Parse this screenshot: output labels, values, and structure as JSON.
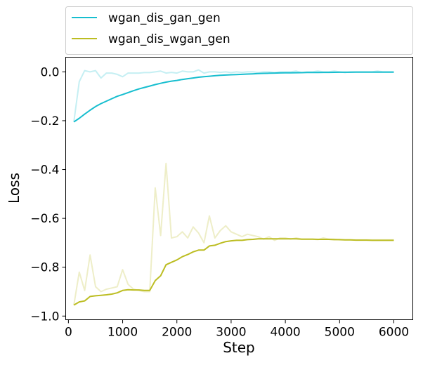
{
  "chart_data": {
    "type": "line",
    "xlabel": "Step",
    "ylabel": "Loss",
    "xlim": [
      -50,
      6350
    ],
    "ylim": [
      -1.015,
      0.06
    ],
    "xticks": [
      0,
      1000,
      2000,
      3000,
      4000,
      5000,
      6000
    ],
    "xtick_labels": [
      "0",
      "1000",
      "2000",
      "3000",
      "4000",
      "5000",
      "6000"
    ],
    "yticks": [
      0.0,
      -0.2,
      -0.4,
      -0.6,
      -0.8,
      -1.0
    ],
    "ytick_labels": [
      "0.0",
      "−0.2",
      "−0.4",
      "−0.6",
      "−0.8",
      "−1.0"
    ],
    "grid": false,
    "legend_placement": "top, above plot",
    "series": [
      {
        "name": "wgan_dis_gan_gen",
        "color": "#17becf",
        "raw_opacity": 0.25,
        "x": [
          100,
          200,
          300,
          400,
          500,
          600,
          700,
          800,
          900,
          1000,
          1100,
          1200,
          1300,
          1400,
          1500,
          1600,
          1700,
          1800,
          1900,
          2000,
          2100,
          2200,
          2300,
          2400,
          2500,
          2600,
          2700,
          2800,
          2900,
          3000,
          3100,
          3200,
          3300,
          3400,
          3500,
          3600,
          3700,
          3800,
          3900,
          4000,
          4100,
          4200,
          4300,
          4400,
          4500,
          4600,
          4700,
          4800,
          4900,
          5000,
          5100,
          5200,
          5300,
          5400,
          5500,
          5600,
          5700,
          5800,
          5900,
          6000
        ],
        "raw": [
          -0.205,
          -0.04,
          0.005,
          0.0,
          0.005,
          -0.025,
          -0.005,
          -0.005,
          -0.01,
          -0.02,
          -0.005,
          -0.005,
          -0.005,
          -0.003,
          -0.003,
          0.0,
          0.003,
          -0.005,
          -0.002,
          -0.005,
          0.003,
          0.0,
          0.0,
          0.008,
          -0.005,
          0.0,
          0.0,
          -0.002,
          0.0,
          -0.003,
          0.0,
          -0.002,
          0.0,
          0.0,
          -0.003,
          0.0,
          0.0,
          -0.003,
          0.0,
          0.0,
          0.0,
          0.003,
          -0.003,
          0.0,
          0.0,
          0.003,
          0.0,
          0.0,
          0.003,
          0.0,
          -0.003,
          0.0,
          0.0,
          0.0,
          0.0,
          0.0,
          0.003,
          0.0,
          0.0,
          0.0
        ],
        "smoothed": [
          -0.205,
          -0.19,
          -0.173,
          -0.157,
          -0.142,
          -0.13,
          -0.12,
          -0.11,
          -0.1,
          -0.093,
          -0.085,
          -0.077,
          -0.07,
          -0.064,
          -0.058,
          -0.052,
          -0.047,
          -0.042,
          -0.038,
          -0.035,
          -0.031,
          -0.028,
          -0.025,
          -0.022,
          -0.02,
          -0.018,
          -0.016,
          -0.014,
          -0.013,
          -0.012,
          -0.011,
          -0.01,
          -0.009,
          -0.008,
          -0.007,
          -0.006,
          -0.0055,
          -0.005,
          -0.0045,
          -0.004,
          -0.0037,
          -0.0034,
          -0.0031,
          -0.0028,
          -0.0026,
          -0.0024,
          -0.0022,
          -0.002,
          -0.0018,
          -0.0016,
          -0.0015,
          -0.0014,
          -0.0013,
          -0.0012,
          -0.0011,
          -0.001,
          -0.001,
          -0.001,
          -0.001,
          -0.001
        ]
      },
      {
        "name": "wgan_dis_wgan_gen",
        "color": "#bcbd22",
        "raw_opacity": 0.25,
        "x": [
          100,
          200,
          300,
          400,
          500,
          600,
          700,
          800,
          900,
          1000,
          1100,
          1200,
          1300,
          1400,
          1500,
          1600,
          1700,
          1800,
          1900,
          2000,
          2100,
          2200,
          2300,
          2400,
          2500,
          2600,
          2700,
          2800,
          2900,
          3000,
          3100,
          3200,
          3300,
          3400,
          3500,
          3600,
          3700,
          3800,
          3900,
          4000,
          4100,
          4200,
          4300,
          4400,
          4500,
          4600,
          4700,
          4800,
          4900,
          5000,
          5100,
          5200,
          5300,
          5400,
          5500,
          5600,
          5700,
          5800,
          5900,
          6000
        ],
        "raw": [
          -0.955,
          -0.82,
          -0.895,
          -0.75,
          -0.88,
          -0.9,
          -0.89,
          -0.885,
          -0.88,
          -0.81,
          -0.87,
          -0.89,
          -0.895,
          -0.9,
          -0.9,
          -0.475,
          -0.67,
          -0.375,
          -0.68,
          -0.675,
          -0.655,
          -0.68,
          -0.635,
          -0.66,
          -0.7,
          -0.59,
          -0.68,
          -0.65,
          -0.63,
          -0.655,
          -0.665,
          -0.675,
          -0.665,
          -0.67,
          -0.675,
          -0.685,
          -0.675,
          -0.69,
          -0.68,
          -0.68,
          -0.685,
          -0.68,
          -0.685,
          -0.685,
          -0.685,
          -0.687,
          -0.68,
          -0.685,
          -0.685,
          -0.688,
          -0.688,
          -0.688,
          -0.688,
          -0.688,
          -0.688,
          -0.688,
          -0.688,
          -0.688,
          -0.688,
          -0.688
        ],
        "smoothed": [
          -0.955,
          -0.942,
          -0.938,
          -0.92,
          -0.917,
          -0.915,
          -0.913,
          -0.91,
          -0.905,
          -0.895,
          -0.892,
          -0.893,
          -0.893,
          -0.895,
          -0.895,
          -0.855,
          -0.835,
          -0.79,
          -0.78,
          -0.77,
          -0.757,
          -0.748,
          -0.737,
          -0.73,
          -0.73,
          -0.713,
          -0.71,
          -0.702,
          -0.695,
          -0.692,
          -0.69,
          -0.69,
          -0.687,
          -0.686,
          -0.684,
          -0.684,
          -0.684,
          -0.684,
          -0.684,
          -0.684,
          -0.684,
          -0.684,
          -0.685,
          -0.685,
          -0.685,
          -0.686,
          -0.686,
          -0.686,
          -0.687,
          -0.687,
          -0.688,
          -0.688,
          -0.689,
          -0.689,
          -0.689,
          -0.69,
          -0.69,
          -0.69,
          -0.69,
          -0.69
        ]
      }
    ]
  }
}
